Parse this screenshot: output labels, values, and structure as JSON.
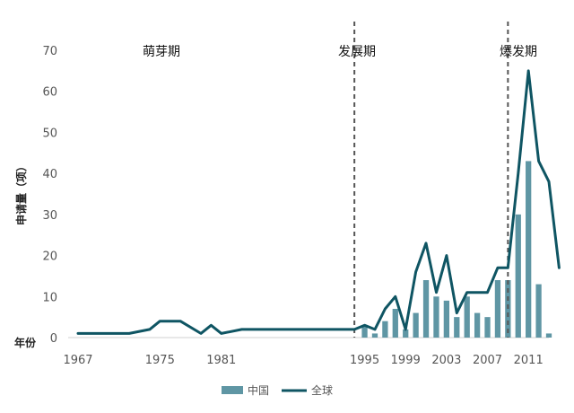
{
  "chart_data": {
    "type": "bar+line",
    "ylabel": "申请量（项）",
    "xlabel": "年份",
    "ylim": [
      0,
      70
    ],
    "yticks": [
      0,
      10,
      20,
      30,
      40,
      50,
      60,
      70
    ],
    "xlim": [
      1967,
      2013
    ],
    "xticks": [
      1967,
      1975,
      1981,
      1995,
      1999,
      2003,
      2007,
      2011
    ],
    "phases": [
      {
        "label": "萌芽期"
      },
      {
        "label": "发展期"
      },
      {
        "label": "爆发期"
      }
    ],
    "phase_dividers": [
      1994,
      2009
    ],
    "legend": [
      "中国",
      "全球"
    ],
    "colors": {
      "china": "#5f96a4",
      "global": "#0f5563",
      "divider": "#555555"
    },
    "series": [
      {
        "name": "中国",
        "kind": "bar",
        "x": [
          1995,
          1996,
          1997,
          1998,
          1999,
          2000,
          2001,
          2002,
          2003,
          2004,
          2005,
          2006,
          2007,
          2008,
          2009,
          2010,
          2011,
          2012,
          2013
        ],
        "values": [
          3,
          1,
          4,
          7,
          2,
          6,
          14,
          10,
          9,
          5,
          10,
          6,
          5,
          14,
          14,
          30,
          43,
          13,
          1
        ]
      },
      {
        "name": "全球",
        "kind": "line",
        "x": [
          1967,
          1970,
          1972,
          1974,
          1975,
          1977,
          1979,
          1980,
          1981,
          1983,
          1985,
          1988,
          1990,
          1993,
          1994,
          1995,
          1996,
          1997,
          1998,
          1999,
          2000,
          2001,
          2002,
          2003,
          2004,
          2005,
          2006,
          2007,
          2008,
          2009,
          2010,
          2011,
          2012,
          2013,
          2014
        ],
        "values": [
          1,
          1,
          1,
          2,
          4,
          4,
          1,
          3,
          1,
          2,
          2,
          2,
          2,
          2,
          2,
          3,
          2,
          7,
          10,
          2,
          16,
          23,
          11,
          20,
          6,
          11,
          11,
          11,
          17,
          17,
          40,
          65,
          43,
          38,
          17
        ]
      }
    ]
  }
}
